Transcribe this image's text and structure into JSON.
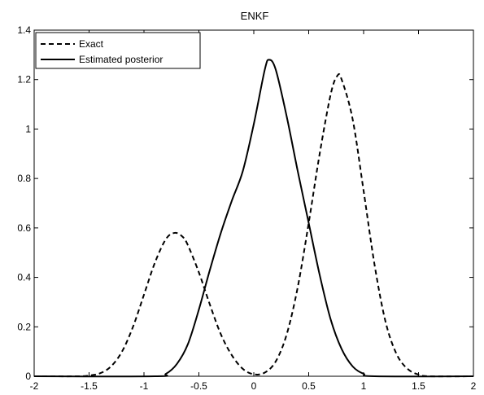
{
  "chart_data": {
    "type": "line",
    "title": "ENKF",
    "xlabel": "",
    "ylabel": "",
    "xlim": [
      -2,
      2
    ],
    "ylim": [
      0,
      1.4
    ],
    "x_ticks": [
      "-2",
      "-1.5",
      "-1",
      "-0.5",
      "0",
      "0.5",
      "1",
      "1.5",
      "2"
    ],
    "y_ticks": [
      "0",
      "0.2",
      "0.4",
      "0.6",
      "0.8",
      "1",
      "1.2",
      "1.4"
    ],
    "grid": false,
    "legend_position": "top-left",
    "series": [
      {
        "name": "Exact",
        "style": "dashed",
        "color": "#000000",
        "points": [
          [
            -2.0,
            0.0
          ],
          [
            -1.6,
            0.0
          ],
          [
            -1.5,
            0.003
          ],
          [
            -1.4,
            0.012
          ],
          [
            -1.3,
            0.04
          ],
          [
            -1.2,
            0.1
          ],
          [
            -1.1,
            0.2
          ],
          [
            -1.0,
            0.33
          ],
          [
            -0.9,
            0.46
          ],
          [
            -0.8,
            0.555
          ],
          [
            -0.72,
            0.58
          ],
          [
            -0.65,
            0.565
          ],
          [
            -0.6,
            0.53
          ],
          [
            -0.5,
            0.42
          ],
          [
            -0.4,
            0.29
          ],
          [
            -0.3,
            0.17
          ],
          [
            -0.2,
            0.085
          ],
          [
            -0.1,
            0.03
          ],
          [
            0.0,
            0.008
          ],
          [
            0.1,
            0.015
          ],
          [
            0.2,
            0.06
          ],
          [
            0.3,
            0.17
          ],
          [
            0.4,
            0.36
          ],
          [
            0.5,
            0.62
          ],
          [
            0.6,
            0.9
          ],
          [
            0.7,
            1.14
          ],
          [
            0.76,
            1.215
          ],
          [
            0.8,
            1.2
          ],
          [
            0.9,
            1.04
          ],
          [
            1.0,
            0.75
          ],
          [
            1.1,
            0.45
          ],
          [
            1.2,
            0.22
          ],
          [
            1.3,
            0.09
          ],
          [
            1.4,
            0.03
          ],
          [
            1.5,
            0.007
          ],
          [
            1.6,
            0.0
          ],
          [
            2.0,
            0.0
          ]
        ]
      },
      {
        "name": "Estimated posterior",
        "style": "solid",
        "color": "#000000",
        "points": [
          [
            -2.0,
            0.0
          ],
          [
            -0.9,
            0.0
          ],
          [
            -0.8,
            0.01
          ],
          [
            -0.7,
            0.05
          ],
          [
            -0.6,
            0.13
          ],
          [
            -0.5,
            0.27
          ],
          [
            -0.4,
            0.43
          ],
          [
            -0.3,
            0.58
          ],
          [
            -0.2,
            0.71
          ],
          [
            -0.1,
            0.83
          ],
          [
            0.0,
            1.02
          ],
          [
            0.1,
            1.24
          ],
          [
            0.14,
            1.28
          ],
          [
            0.2,
            1.24
          ],
          [
            0.3,
            1.05
          ],
          [
            0.4,
            0.83
          ],
          [
            0.5,
            0.62
          ],
          [
            0.6,
            0.41
          ],
          [
            0.7,
            0.23
          ],
          [
            0.8,
            0.11
          ],
          [
            0.9,
            0.04
          ],
          [
            1.0,
            0.01
          ],
          [
            1.1,
            0.0
          ],
          [
            2.0,
            0.0
          ]
        ]
      }
    ]
  }
}
